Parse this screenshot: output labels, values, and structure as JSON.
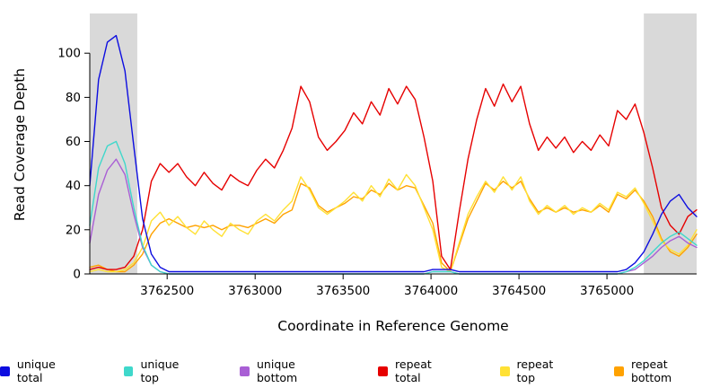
{
  "chart_data": {
    "type": "line",
    "title": "",
    "xlabel": "Coordinate in Reference Genome",
    "ylabel": "Read Coverage Depth",
    "xlim": [
      3762060,
      3765510
    ],
    "ylim": [
      0,
      118
    ],
    "xticks": [
      3762500,
      3763000,
      3763500,
      3764000,
      3764500,
      3765000
    ],
    "yticks": [
      0,
      20,
      40,
      60,
      80,
      100
    ],
    "grid": false,
    "legend_position": "bottom",
    "shaded_regions": [
      {
        "x0": 3762060,
        "x1": 3762330,
        "color": "#d9d9d9"
      },
      {
        "x0": 3765210,
        "x1": 3765510,
        "color": "#d9d9d9"
      }
    ],
    "x": [
      3762060,
      3762110,
      3762160,
      3762210,
      3762260,
      3762310,
      3762360,
      3762410,
      3762460,
      3762510,
      3762560,
      3762610,
      3762660,
      3762710,
      3762760,
      3762810,
      3762860,
      3762910,
      3762960,
      3763010,
      3763060,
      3763110,
      3763160,
      3763210,
      3763260,
      3763310,
      3763360,
      3763410,
      3763460,
      3763510,
      3763560,
      3763610,
      3763660,
      3763710,
      3763760,
      3763810,
      3763860,
      3763910,
      3763960,
      3764010,
      3764060,
      3764110,
      3764160,
      3764210,
      3764260,
      3764310,
      3764360,
      3764410,
      3764460,
      3764510,
      3764560,
      3764610,
      3764660,
      3764710,
      3764760,
      3764810,
      3764860,
      3764910,
      3764960,
      3765010,
      3765060,
      3765110,
      3765160,
      3765210,
      3765260,
      3765310,
      3765360,
      3765410,
      3765460,
      3765510
    ],
    "series": [
      {
        "name": "unique total",
        "color": "#0d0de0",
        "values": [
          40,
          88,
          105,
          108,
          92,
          58,
          25,
          9,
          3,
          1,
          1,
          1,
          1,
          1,
          1,
          1,
          1,
          1,
          1,
          1,
          1,
          1,
          1,
          1,
          1,
          1,
          1,
          1,
          1,
          1,
          1,
          1,
          1,
          1,
          1,
          1,
          1,
          1,
          1,
          2,
          2,
          2,
          1,
          1,
          1,
          1,
          1,
          1,
          1,
          1,
          1,
          1,
          1,
          1,
          1,
          1,
          1,
          1,
          1,
          1,
          1,
          2,
          5,
          10,
          18,
          27,
          33,
          36,
          30,
          26
        ]
      },
      {
        "name": "unique top",
        "color": "#3fd8cb",
        "values": [
          22,
          48,
          58,
          60,
          50,
          30,
          13,
          4,
          1,
          0,
          0,
          0,
          0,
          0,
          0,
          0,
          0,
          0,
          0,
          0,
          0,
          0,
          0,
          0,
          0,
          0,
          0,
          0,
          0,
          0,
          0,
          0,
          0,
          0,
          0,
          0,
          0,
          0,
          0,
          1,
          1,
          1,
          0,
          0,
          0,
          0,
          0,
          0,
          0,
          0,
          0,
          0,
          0,
          0,
          0,
          0,
          0,
          0,
          0,
          0,
          0,
          1,
          3,
          6,
          10,
          14,
          17,
          19,
          16,
          13
        ]
      },
      {
        "name": "unique bottom",
        "color": "#a95fd5",
        "values": [
          14,
          36,
          47,
          52,
          45,
          27,
          12,
          4,
          1,
          0,
          0,
          0,
          0,
          0,
          0,
          0,
          0,
          0,
          0,
          0,
          0,
          0,
          0,
          0,
          0,
          0,
          0,
          0,
          0,
          0,
          0,
          0,
          0,
          0,
          0,
          0,
          0,
          0,
          0,
          1,
          1,
          1,
          0,
          0,
          0,
          0,
          0,
          0,
          0,
          0,
          0,
          0,
          0,
          0,
          0,
          0,
          0,
          0,
          0,
          0,
          0,
          1,
          2,
          5,
          8,
          12,
          15,
          17,
          14,
          12
        ]
      },
      {
        "name": "repeat total",
        "color": "#e60000",
        "values": [
          2,
          3,
          2,
          2,
          3,
          8,
          20,
          42,
          50,
          46,
          50,
          44,
          40,
          46,
          41,
          38,
          45,
          42,
          40,
          47,
          52,
          48,
          56,
          66,
          85,
          78,
          62,
          56,
          60,
          65,
          73,
          68,
          78,
          72,
          84,
          77,
          85,
          79,
          62,
          42,
          8,
          2,
          28,
          52,
          70,
          84,
          76,
          86,
          78,
          85,
          68,
          56,
          62,
          57,
          62,
          55,
          60,
          56,
          63,
          58,
          74,
          70,
          77,
          64,
          48,
          30,
          22,
          18,
          26,
          29
        ]
      },
      {
        "name": "repeat top",
        "color": "#ffe135",
        "values": [
          1,
          2,
          1,
          1,
          2,
          5,
          12,
          24,
          28,
          22,
          26,
          21,
          18,
          24,
          20,
          17,
          23,
          20,
          18,
          24,
          27,
          24,
          29,
          33,
          44,
          38,
          30,
          27,
          30,
          33,
          37,
          33,
          40,
          35,
          43,
          38,
          45,
          40,
          30,
          20,
          3,
          1,
          14,
          27,
          35,
          42,
          37,
          44,
          38,
          44,
          33,
          27,
          31,
          28,
          31,
          27,
          30,
          28,
          32,
          29,
          37,
          35,
          39,
          32,
          24,
          15,
          11,
          9,
          13,
          20
        ]
      },
      {
        "name": "repeat bottom",
        "color": "#ffa200",
        "values": [
          3,
          4,
          2,
          1,
          1,
          4,
          9,
          18,
          23,
          25,
          23,
          21,
          22,
          21,
          22,
          20,
          22,
          22,
          21,
          23,
          25,
          23,
          27,
          29,
          41,
          39,
          31,
          28,
          30,
          32,
          35,
          34,
          38,
          36,
          41,
          38,
          40,
          39,
          31,
          23,
          5,
          1,
          13,
          25,
          33,
          41,
          38,
          42,
          39,
          42,
          34,
          28,
          30,
          28,
          30,
          28,
          29,
          28,
          31,
          28,
          36,
          34,
          38,
          33,
          26,
          16,
          10,
          8,
          12,
          18
        ]
      }
    ]
  }
}
